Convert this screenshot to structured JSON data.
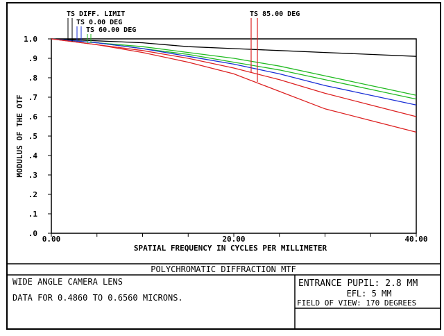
{
  "chart_data": {
    "type": "line",
    "title": "POLYCHROMATIC DIFFRACTION MTF",
    "xlabel": "SPATIAL FREQUENCY IN CYCLES PER MILLIMETER",
    "ylabel": "MODULUS OF THE OTF",
    "xlim": [
      0,
      40
    ],
    "ylim": [
      0,
      1.0
    ],
    "x_ticks": [
      0,
      5,
      10,
      15,
      20,
      25,
      30,
      35,
      40
    ],
    "x_tick_labels": [
      "0.00",
      "",
      "",
      "",
      "20.00",
      "",
      "",
      "",
      "40.00"
    ],
    "y_ticks": [
      0,
      0.1,
      0.2,
      0.3,
      0.4,
      0.5,
      0.6,
      0.7,
      0.8,
      0.9,
      1.0
    ],
    "y_tick_labels": [
      ".0",
      ".1",
      ".2",
      ".3",
      ".4",
      ".5",
      ".6",
      ".7",
      ".8",
      ".9",
      "1.0"
    ],
    "grid": false,
    "legend": [
      "TS DIFF. LIMIT",
      "TS 0.00 DEG",
      "TS 60.00 DEG",
      "TS 85.00 DEG"
    ],
    "series": [
      {
        "name": "TS DIFF. LIMIT",
        "color": "#000000",
        "x": [
          0,
          5,
          10,
          15,
          20,
          25,
          30,
          35,
          40
        ],
        "values": [
          1.0,
          0.99,
          0.98,
          0.96,
          0.95,
          0.94,
          0.93,
          0.92,
          0.91
        ]
      },
      {
        "color": "#22bb22",
        "x": [
          0,
          5,
          10,
          15,
          20,
          25,
          30,
          35,
          40
        ],
        "values": [
          1.0,
          0.98,
          0.96,
          0.93,
          0.9,
          0.86,
          0.81,
          0.76,
          0.71
        ]
      },
      {
        "color": "#22bb22",
        "x": [
          0,
          5,
          10,
          15,
          20,
          25,
          30,
          35,
          40
        ],
        "values": [
          1.0,
          0.98,
          0.95,
          0.92,
          0.88,
          0.84,
          0.79,
          0.74,
          0.69
        ]
      },
      {
        "color": "#1a2fd6",
        "x": [
          0,
          5,
          10,
          15,
          20,
          25,
          30,
          35,
          40
        ],
        "values": [
          1.0,
          0.98,
          0.95,
          0.91,
          0.87,
          0.82,
          0.76,
          0.71,
          0.66
        ]
      },
      {
        "color": "#dd2222",
        "x": [
          0,
          5,
          10,
          15,
          20,
          25,
          30,
          35,
          40
        ],
        "values": [
          1.0,
          0.97,
          0.94,
          0.9,
          0.85,
          0.79,
          0.72,
          0.66,
          0.6
        ]
      },
      {
        "color": "#dd2222",
        "x": [
          0,
          5,
          10,
          15,
          20,
          25,
          30,
          35,
          40
        ],
        "values": [
          1.0,
          0.97,
          0.93,
          0.88,
          0.82,
          0.73,
          0.64,
          0.58,
          0.52
        ]
      }
    ]
  },
  "footer": {
    "title": "POLYCHROMATIC DIFFRACTION MTF",
    "lens_name": "WIDE ANGLE CAMERA LENS",
    "data_range": "DATA FOR 0.4860 TO 0.6560 MICRONS.",
    "entrance_pupil": "ENTRANCE PUPIL: 2.8 MM",
    "efl": "EFL: 5 MM",
    "field_of_view": "FIELD OF VIEW: 170 DEGREES"
  },
  "colors": {
    "frame": "#000000",
    "background": "#ffffff"
  }
}
